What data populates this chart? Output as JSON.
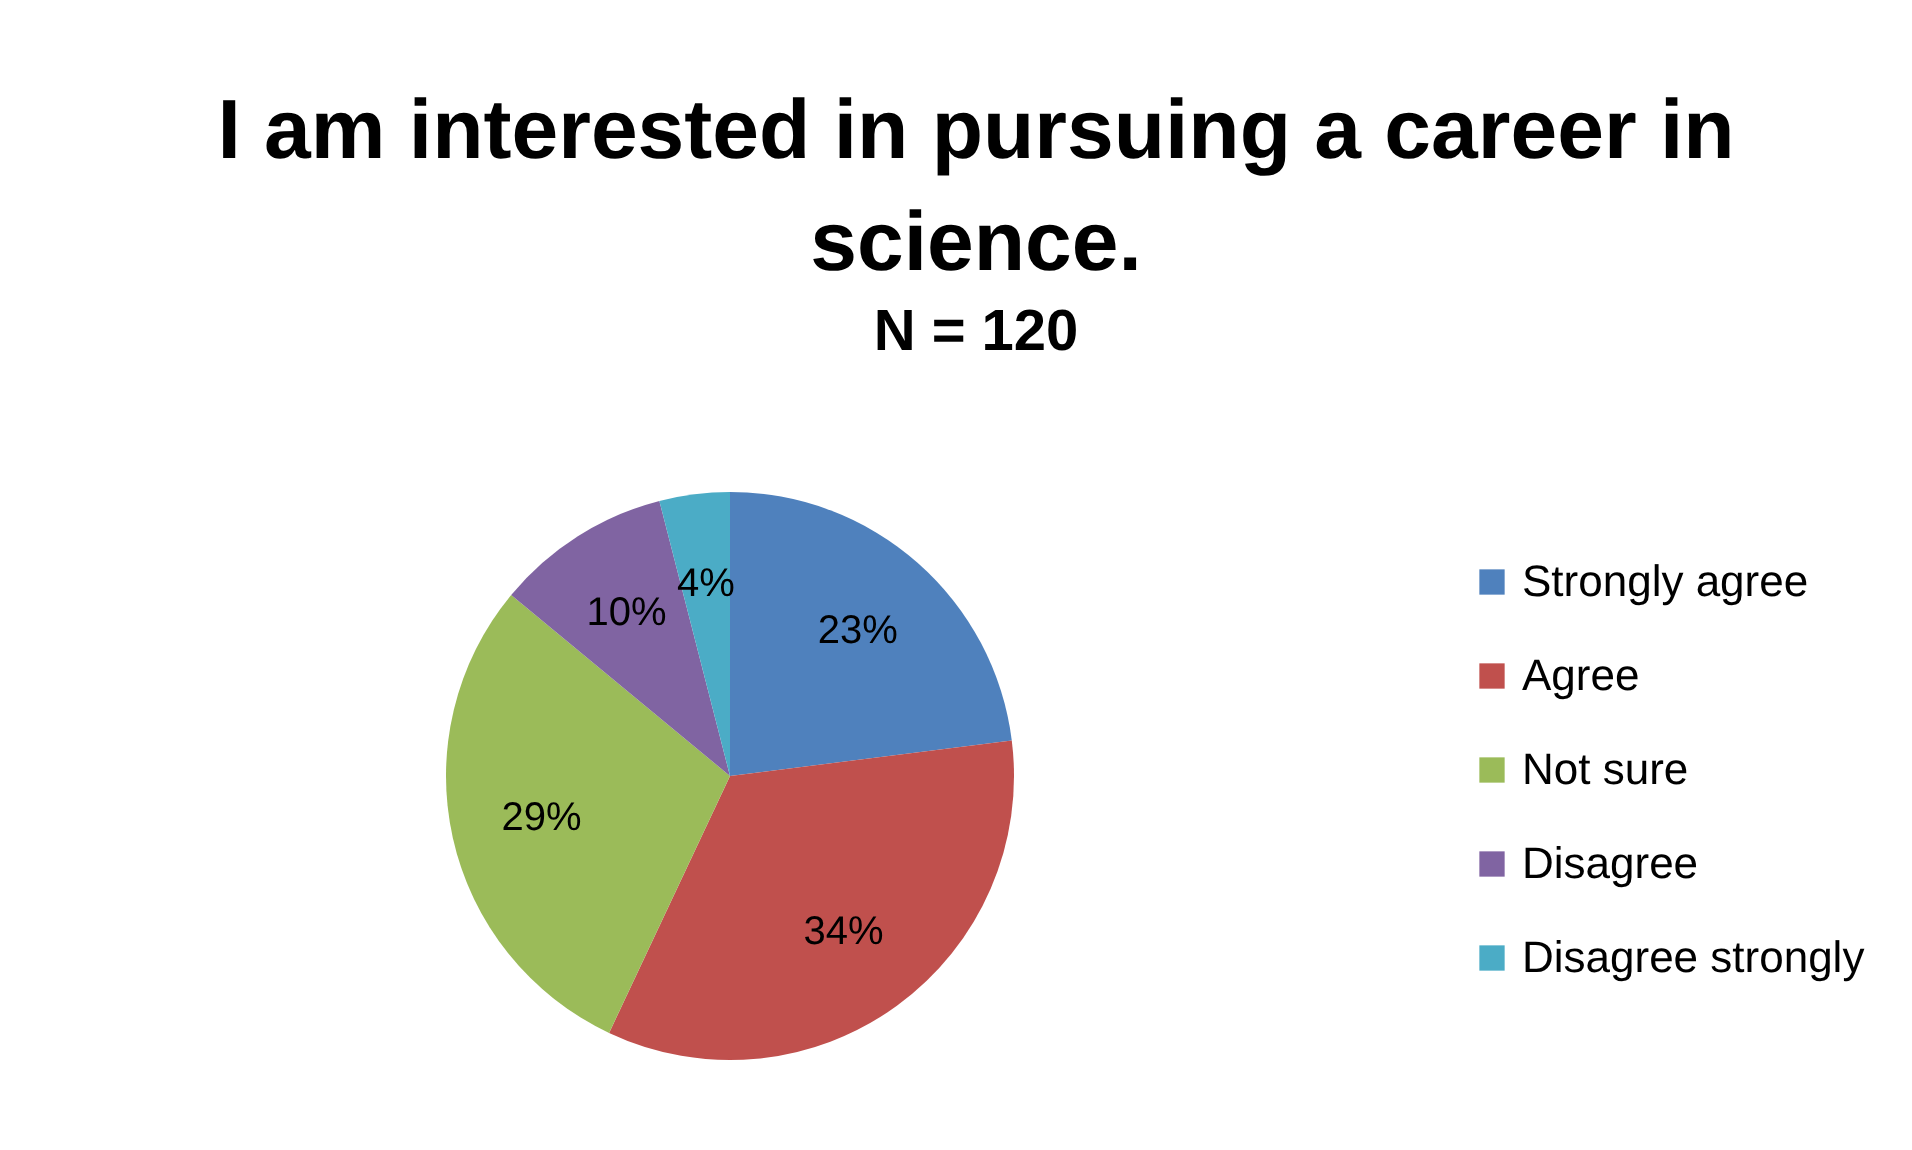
{
  "chart_data": {
    "type": "pie",
    "title": "I am interested in pursuing a career in science.",
    "subtitle": "N = 120",
    "categories": [
      "Strongly agree",
      "Agree",
      "Not sure",
      "Disagree",
      "Disagree strongly"
    ],
    "values": [
      23,
      34,
      29,
      10,
      4
    ],
    "colors": [
      "#4f81bd",
      "#c0504d",
      "#9bbb59",
      "#8064a2",
      "#4bacc6"
    ],
    "value_labels": [
      "23%",
      "34%",
      "29%",
      "10%",
      "4%"
    ],
    "legend": "right"
  }
}
